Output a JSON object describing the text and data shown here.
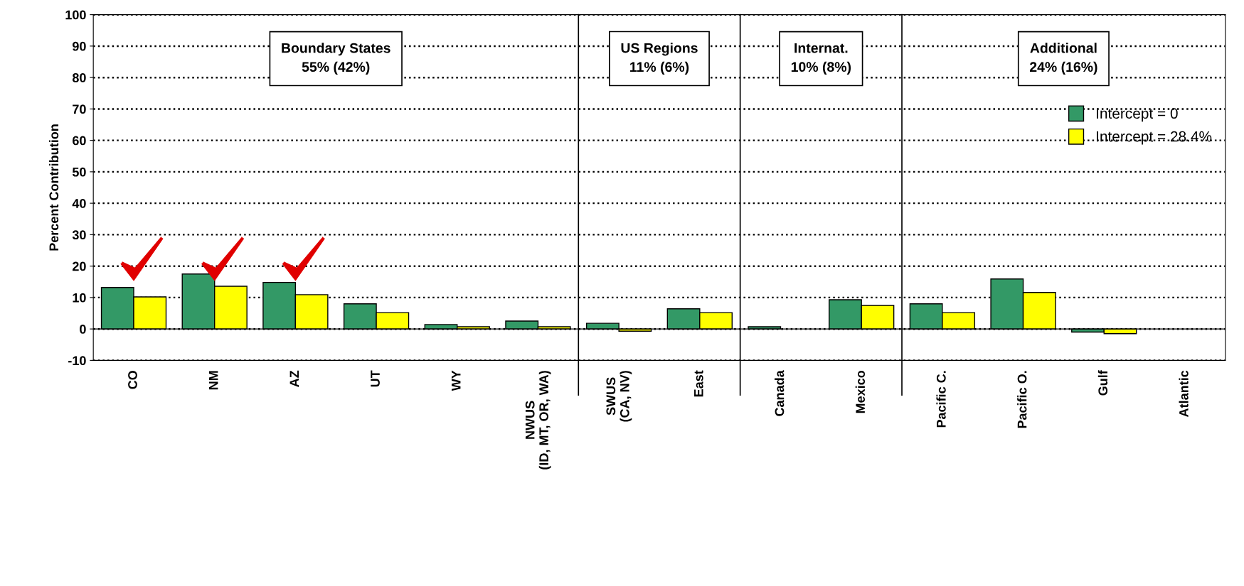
{
  "chart_data": {
    "type": "bar",
    "ylabel": "Percent Contribution",
    "categories": [
      "CO",
      "NM",
      "AZ",
      "UT",
      "WY",
      "NWUS\n(ID, MT, OR, WA)",
      "SWUS\n(CA, NV)",
      "East",
      "Canada",
      "Mexico",
      "Pacific C.",
      "Pacific O.",
      "Gulf",
      "Atlantic"
    ],
    "series": [
      {
        "name": "Intercept = 0",
        "color": "#339966",
        "values": [
          13.2,
          17.5,
          14.8,
          8.0,
          1.4,
          2.5,
          1.8,
          6.4,
          0.7,
          9.3,
          8.0,
          15.9,
          -1.0,
          0
        ]
      },
      {
        "name": "Intercept = 28.4%",
        "color": "#ffff00",
        "values": [
          10.2,
          13.6,
          10.9,
          5.2,
          0.7,
          0.7,
          -0.7,
          5.2,
          0,
          7.5,
          5.2,
          11.6,
          -1.5,
          0
        ]
      }
    ],
    "ylim": [
      -10,
      100
    ],
    "yticks": [
      -10,
      0,
      10,
      20,
      30,
      40,
      50,
      60,
      70,
      80,
      90,
      100
    ],
    "grid": "y",
    "line_style": "dotted",
    "legend": "right",
    "annotations": [
      "Boundary States\n55% (42%)",
      "US Regions\n11% (6%)",
      "Internat.\n10% (8%)",
      "Additional\n24% (16%)"
    ]
  }
}
